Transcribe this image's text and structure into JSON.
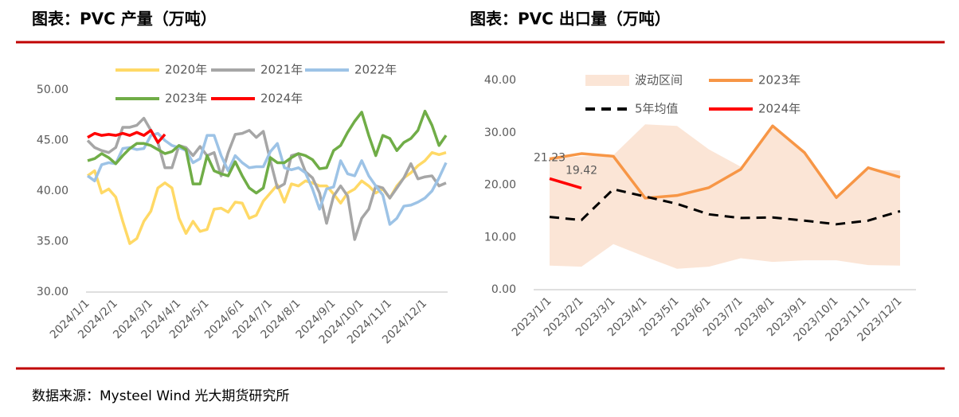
{
  "chart_data": [
    {
      "type": "line",
      "title": "图表：PVC 产量（万吨）",
      "categories": [
        "2024/1/1",
        null,
        null,
        null,
        "2024/2/1",
        null,
        null,
        null,
        null,
        "2024/3/1",
        null,
        null,
        null,
        "2024/4/1",
        null,
        null,
        null,
        "2024/5/1",
        null,
        null,
        null,
        null,
        "2024/6/1",
        null,
        null,
        null,
        "2024/7/1",
        null,
        null,
        null,
        "2024/8/1",
        null,
        null,
        null,
        null,
        "2024/9/1",
        null,
        null,
        null,
        "2024/10/1",
        null,
        null,
        null,
        "2024/11/1",
        null,
        null,
        null,
        null,
        "2024/12/1",
        null,
        null,
        null
      ],
      "ylim": [
        30,
        50
      ],
      "yticks": [
        {
          "value": 30,
          "label": "30.00"
        },
        {
          "value": 35,
          "label": "35.00"
        },
        {
          "value": 40,
          "label": "40.00"
        },
        {
          "value": 45,
          "label": "45.00"
        },
        {
          "value": 50,
          "label": "50.00"
        }
      ],
      "series": [
        {
          "name": "2020年",
          "color": "#ffd966",
          "values": [
            41.5,
            42,
            39.8,
            40.2,
            39.4,
            37,
            34.8,
            35.3,
            37,
            38,
            40.3,
            40.8,
            40.3,
            37.3,
            35.8,
            37,
            36,
            36.2,
            38.2,
            38.3,
            37.9,
            38.9,
            38.8,
            37.3,
            37.6,
            39,
            39.8,
            40.6,
            38.9,
            40.7,
            40.5,
            41,
            40.8,
            40.5,
            40.5,
            39.7,
            38.8,
            39.8,
            40.2,
            41,
            40.5,
            39.8,
            40.2,
            39.3,
            40.5,
            41.3,
            41.8,
            42.5,
            43,
            43.8,
            43.6,
            43.8
          ]
        },
        {
          "name": "2021年",
          "color": "#a6a6a6",
          "values": [
            45,
            44.3,
            44,
            43.8,
            44.3,
            46.3,
            46.3,
            46.5,
            47.2,
            46,
            44.8,
            42.3,
            42.3,
            44.5,
            44.3,
            43.5,
            44.4,
            43.5,
            43.8,
            41.5,
            43.8,
            45.6,
            45.7,
            46,
            45.3,
            45.9,
            43,
            40.3,
            40.7,
            43.5,
            43.7,
            41.9,
            41.3,
            39.8,
            36.8,
            39.5,
            40.5,
            39.5,
            35.2,
            37.3,
            38.2,
            40.5,
            40.3,
            39.3,
            40.3,
            41.3,
            42.7,
            41.2,
            41.4,
            41.5,
            40.5,
            40.8
          ]
        },
        {
          "name": "2022年",
          "color": "#9dc3e6",
          "values": [
            41.5,
            41,
            42.6,
            42.8,
            42.7,
            44.2,
            44.3,
            44.1,
            44.2,
            45.5,
            45.7,
            45,
            44.5,
            44.3,
            44,
            42.8,
            43.2,
            45.5,
            45.5,
            43.5,
            42,
            43.5,
            42.8,
            42.3,
            42.4,
            42.4,
            43.9,
            44.7,
            42.3,
            42.1,
            42.3,
            41.8,
            40.2,
            38.2,
            40.2,
            40.4,
            43,
            41.7,
            41.5,
            43,
            41.5,
            40.5,
            39.6,
            36.7,
            37.3,
            38.5,
            38.6,
            38.9,
            39.3,
            40,
            41.3,
            42.8
          ]
        },
        {
          "name": "2023年",
          "color": "#70ad47",
          "values": [
            43,
            43.2,
            43.7,
            43.3,
            42.7,
            43.5,
            44.2,
            44.7,
            44.7,
            44.5,
            44.1,
            43.7,
            43.9,
            44.5,
            44.1,
            40.7,
            40.7,
            43.5,
            42,
            41.7,
            41.5,
            42.9,
            41.5,
            40.3,
            39.8,
            40.3,
            43.3,
            42.8,
            42.8,
            43.3,
            43.7,
            43.5,
            43.1,
            42.2,
            42.3,
            44,
            44.5,
            45.8,
            46.9,
            47.8,
            45.5,
            43.5,
            45.5,
            45.2,
            44,
            44.8,
            45.2,
            46,
            47.9,
            46.5,
            44.5,
            45.5
          ]
        },
        {
          "name": "2024年",
          "color": "#ff0000",
          "values": [
            45.3,
            45.7,
            45.5,
            45.6,
            45.5,
            45.7,
            45.5,
            45.8,
            45.5,
            46,
            44.8,
            45.6,
            null,
            null,
            null,
            null,
            null,
            null,
            null,
            null,
            null,
            null,
            null,
            null,
            null,
            null,
            null,
            null,
            null,
            null,
            null,
            null,
            null,
            null,
            null,
            null,
            null,
            null,
            null,
            null,
            null,
            null,
            null,
            null,
            null,
            null,
            null,
            null,
            null,
            null,
            null,
            null
          ]
        }
      ]
    },
    {
      "type": "line",
      "title": "图表：PVC 出口量（万吨）",
      "categories": [
        "2023/1/1",
        "2023/2/1",
        "2023/3/1",
        "2023/4/1",
        "2023/5/1",
        "2023/6/1",
        "2023/7/1",
        "2023/8/1",
        "2023/9/1",
        "2023/10/1",
        "2023/11/1",
        "2023/12/1"
      ],
      "ylim": [
        0,
        40
      ],
      "yticks": [
        {
          "value": 0,
          "label": "0.00"
        },
        {
          "value": 10,
          "label": "10.00"
        },
        {
          "value": 20,
          "label": "20.00"
        },
        {
          "value": 30,
          "label": "30.00"
        },
        {
          "value": 40,
          "label": "40.00"
        }
      ],
      "series": [
        {
          "name": "波动区间",
          "color": "#fbe5d6",
          "values": [
            25,
            25.5,
            25.7,
            31.6,
            31.3,
            26.8,
            23.5,
            31.2,
            26.2,
            17.5,
            22.9,
            22.8
          ],
          "lower": [
            4.6,
            4.4,
            8.7,
            6.3,
            4.0,
            4.4,
            6.0,
            5.3,
            5.6,
            5.6,
            4.7,
            4.6
          ]
        },
        {
          "name": "2023年",
          "color": "#f79646",
          "values": [
            25,
            26,
            25.5,
            17.5,
            18,
            19.5,
            23,
            31.3,
            26.2,
            17.6,
            23.3,
            21.5
          ]
        },
        {
          "name": "5年均值",
          "color": "#000000",
          "dashed": true,
          "values": [
            13.9,
            13.3,
            19.2,
            17.8,
            16.4,
            14.4,
            13.7,
            13.8,
            13.2,
            12.5,
            13.2,
            15
          ]
        },
        {
          "name": "2024年",
          "color": "#ff0000",
          "labels": true,
          "values": [
            21.23,
            19.42,
            null,
            null,
            null,
            null,
            null,
            null,
            null,
            null,
            null,
            null
          ]
        }
      ]
    }
  ],
  "source": "数据来源：Mysteel Wind 光大期货研究所"
}
